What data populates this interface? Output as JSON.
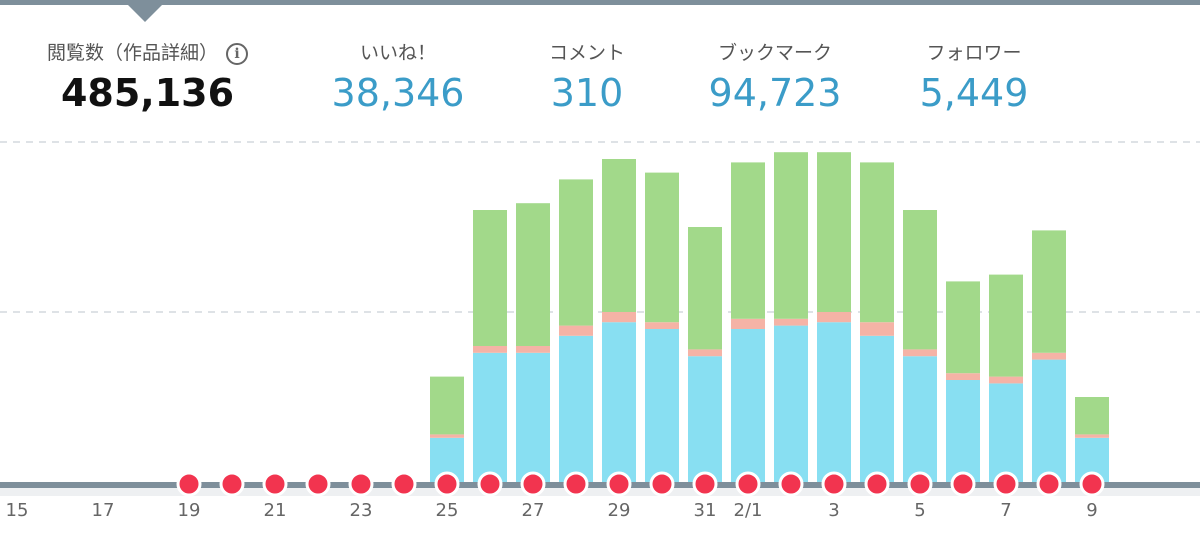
{
  "stats": [
    {
      "label": "閲覧数（作品詳細）",
      "value": "485,136",
      "primary": true,
      "has_info": true
    },
    {
      "label": "いいね！",
      "value": "38,346"
    },
    {
      "label": "コメント",
      "value": "310"
    },
    {
      "label": "ブックマーク",
      "value": "94,723"
    },
    {
      "label": "フォロワー",
      "value": "5,449"
    }
  ],
  "colors": {
    "series_blue": "#88dff2",
    "series_pink": "#f5b3a6",
    "series_green": "#a2d98a",
    "marker": "#f2344f",
    "axis": "#7e8f9b",
    "accent_value": "#3b9cc8"
  },
  "chart_data": {
    "type": "bar",
    "stacked": true,
    "y_axis_labels_shown": false,
    "grid": "dashed horizontal lines",
    "x_days": [
      "15",
      "16",
      "17",
      "18",
      "19",
      "20",
      "21",
      "22",
      "23",
      "24",
      "25",
      "26",
      "27",
      "28",
      "29",
      "30",
      "31",
      "2/1",
      "2",
      "3",
      "4",
      "5",
      "6",
      "7",
      "8",
      "9"
    ],
    "tick_labels": [
      "15",
      "17",
      "19",
      "21",
      "23",
      "25",
      "27",
      "29",
      "31",
      "2/1",
      "3",
      "5",
      "7",
      "9"
    ],
    "tick_days": [
      "15",
      "17",
      "19",
      "21",
      "23",
      "25",
      "27",
      "29",
      "31",
      "2/1",
      "3",
      "5",
      "7",
      "9"
    ],
    "bar_days": [
      "25",
      "26",
      "27",
      "28",
      "29",
      "30",
      "31",
      "2/1",
      "2",
      "3",
      "4",
      "5",
      "6",
      "7",
      "8",
      "9"
    ],
    "ymax": 100,
    "series": [
      {
        "color_key": "series_blue",
        "values": [
          13,
          38,
          38,
          43,
          47,
          45,
          37,
          45,
          46,
          47,
          43,
          37,
          30,
          29,
          36,
          13
        ]
      },
      {
        "color_key": "series_pink",
        "values": [
          1,
          2,
          2,
          3,
          3,
          2,
          2,
          3,
          2,
          3,
          4,
          2,
          2,
          2,
          2,
          1
        ]
      },
      {
        "color_key": "series_green",
        "values": [
          17,
          40,
          42,
          43,
          45,
          44,
          36,
          46,
          49,
          47,
          47,
          41,
          27,
          30,
          36,
          11
        ]
      }
    ],
    "marker_days": [
      "19",
      "20",
      "21",
      "22",
      "23",
      "24",
      "25",
      "26",
      "27",
      "28",
      "29",
      "30",
      "31",
      "2/1",
      "2",
      "3",
      "4",
      "5",
      "6",
      "7",
      "8",
      "9"
    ]
  }
}
